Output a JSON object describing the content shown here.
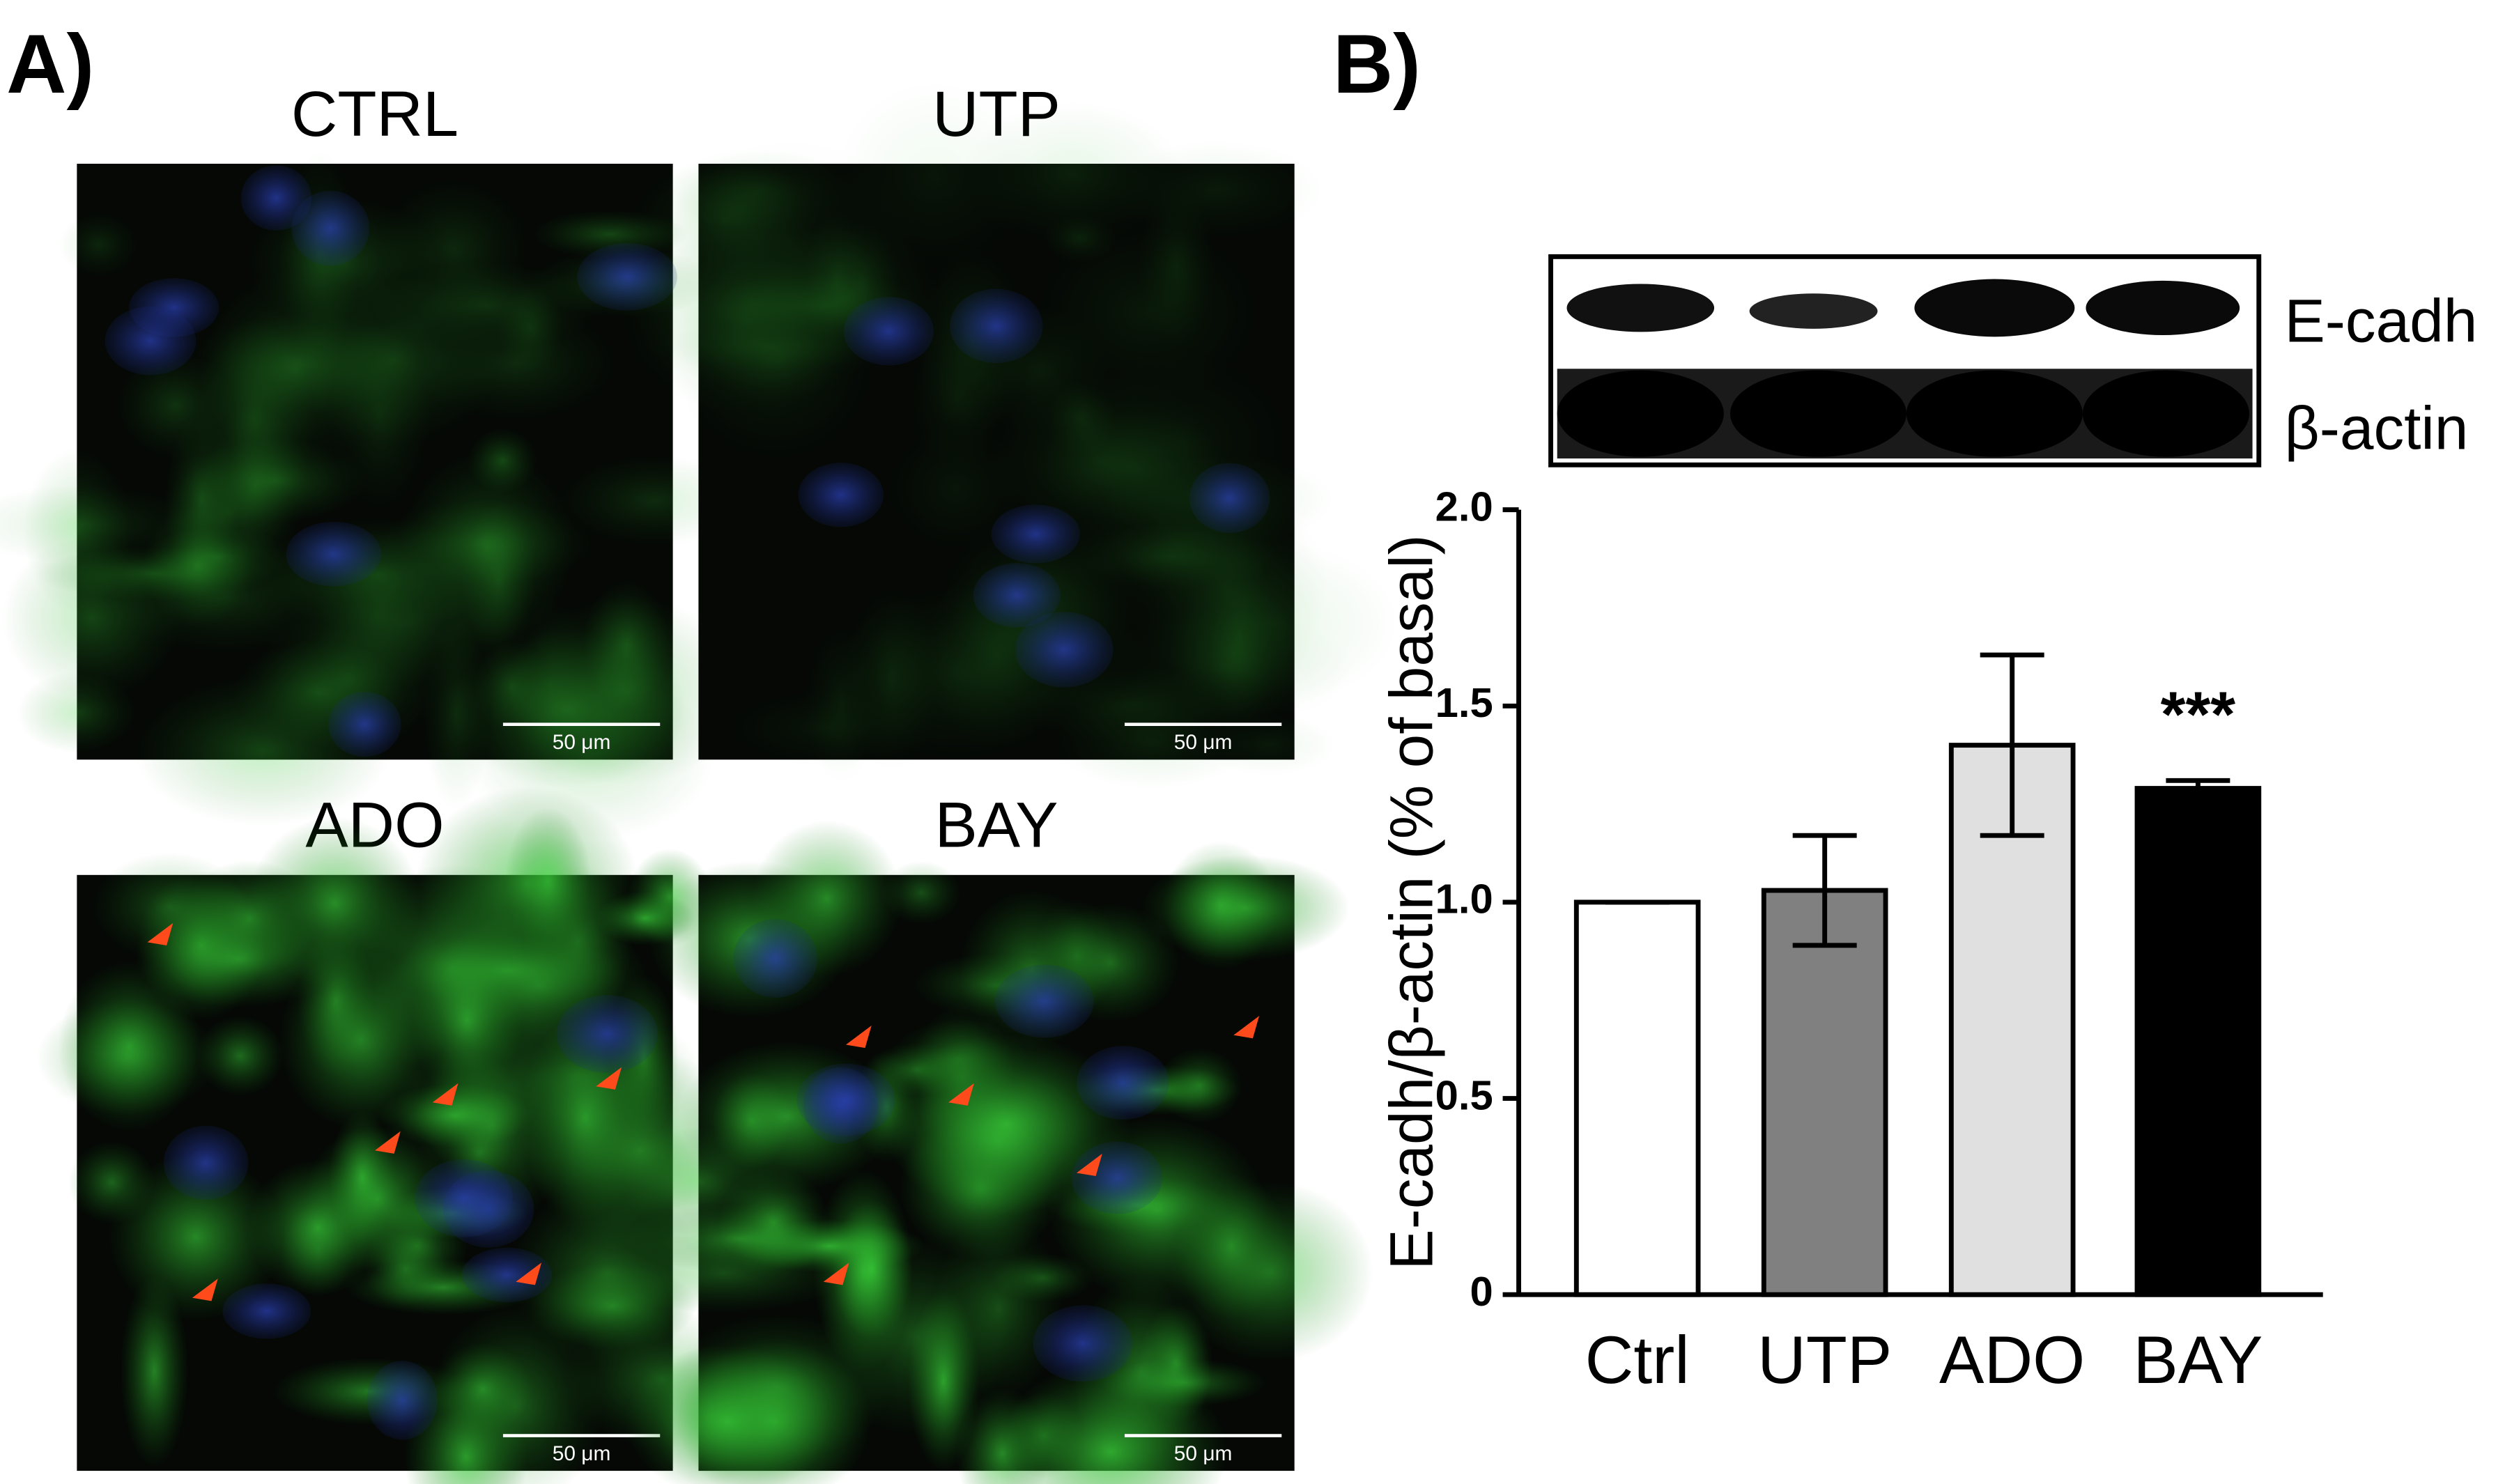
{
  "panel_a": {
    "label": "A)",
    "images": [
      {
        "title": "CTRL",
        "scale_bar": "50 μm"
      },
      {
        "title": "UTP",
        "scale_bar": "50 μm"
      },
      {
        "title": "ADO",
        "scale_bar": "50 μm"
      },
      {
        "title": "BAY",
        "scale_bar": "50 μm"
      }
    ]
  },
  "panel_b": {
    "label": "B)",
    "blot_labels": [
      "E-cadh",
      "β-actin"
    ]
  },
  "chart_data": {
    "type": "bar",
    "ylabel": "E-cadh/β-actin (% of basal)",
    "categories": [
      "Ctrl",
      "UTP",
      "ADO",
      "BAY"
    ],
    "values": [
      1.0,
      1.03,
      1.4,
      1.29
    ],
    "errors": [
      0,
      0.14,
      0.23,
      0.02
    ],
    "colors": [
      "#ffffff",
      "#808080",
      "#e0e0e0",
      "#000000"
    ],
    "ylim": [
      0,
      2
    ],
    "yticks": [
      0,
      0.5,
      {
        "value": 1,
        "label": "1.0"
      },
      1.5,
      {
        "value": 2,
        "label": "2.0"
      }
    ],
    "annotations": [
      {
        "text": "***",
        "category": "BAY"
      }
    ]
  }
}
